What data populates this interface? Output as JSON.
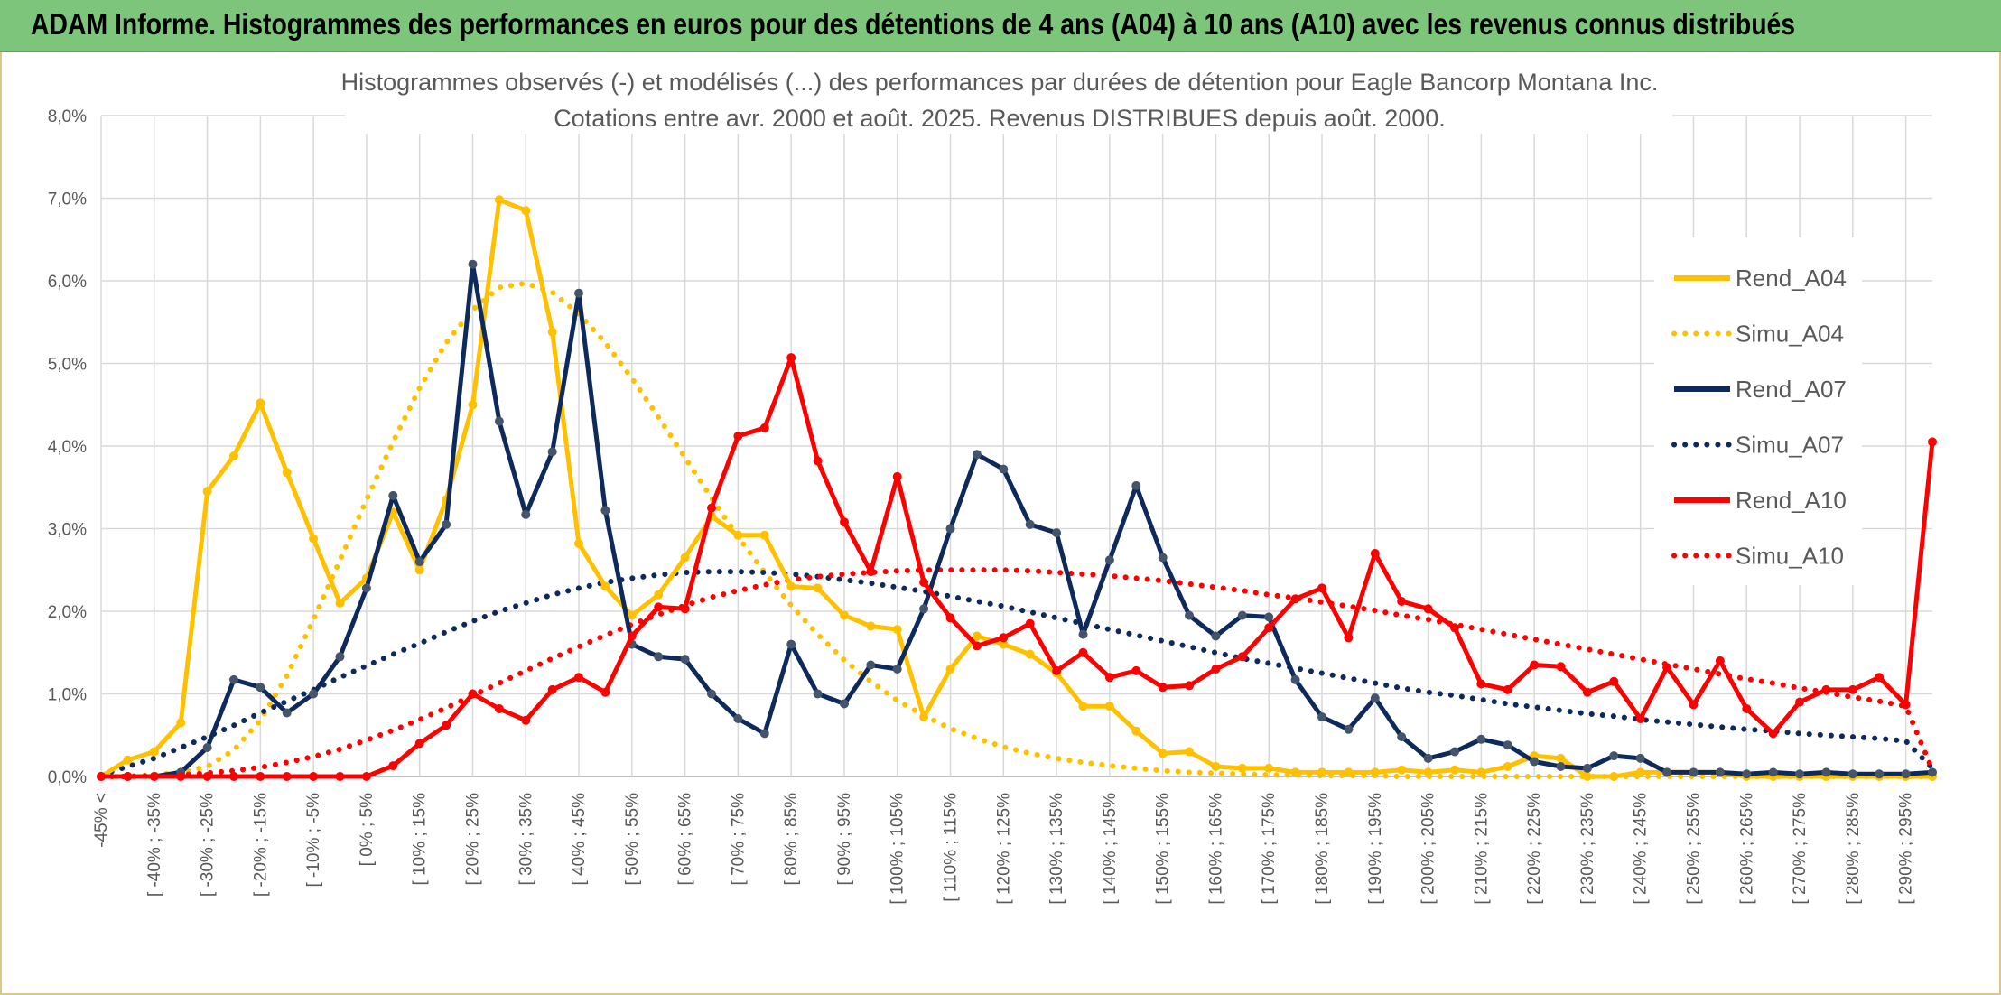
{
  "banner": {
    "text": "ADAM Informe. Histogrammes des performances en euros pour des détentions de 4 ans (A04) à 10 ans (A10) avec les revenus connus distribués",
    "color": "#7cc57b"
  },
  "chart_data": {
    "type": "line",
    "title_line1": "Histogrammes observés (-) et modélisés (...) des performances par durées de détention pour Eagle Bancorp Montana Inc.",
    "title_line2": "Cotations entre avr. 2000 et août. 2025. Revenus DISTRIBUES depuis août. 2000.",
    "ylim": [
      0,
      8
    ],
    "yticks": [
      "0,0%",
      "1,0%",
      "2,0%",
      "3,0%",
      "4,0%",
      "5,0%",
      "6,0%",
      "7,0%",
      "8,0%"
    ],
    "grid": true,
    "legend_position": "right",
    "x_labels": [
      "-45% <",
      "[ -40% ; -35%",
      "[ -30% ; -25%",
      "[ -20% ; -15%",
      "[ -10% ; -5%",
      "[ 0% ; 5%",
      "[ 10% ; 15%",
      "[ 20% ; 25%",
      "[ 30% ; 35%",
      "[ 40% ; 45%",
      "[ 50% ; 55%",
      "[ 60% ; 65%",
      "[ 70% ; 75%",
      "[ 80% ; 85%",
      "[ 90% ; 95%",
      "[ 100% ; 105%",
      "[ 110% ; 115%",
      "[ 120% ; 125%",
      "[ 130% ; 135%",
      "[ 140% ; 145%",
      "[ 150% ; 155%",
      "[ 160% ; 165%",
      "[ 170% ; 175%",
      "[ 180% ; 185%",
      "[ 190% ; 195%",
      "[ 200% ; 205%",
      "[ 210% ; 215%",
      "[ 220% ; 225%",
      "[ 230% ; 235%",
      "[ 240% ; 245%",
      "[ 250% ; 255%",
      "[ 260% ; 265%",
      "[ 270% ; 275%",
      "[ 280% ; 285%",
      "[ 290% ; 295%"
    ],
    "n_points": 70,
    "series": [
      {
        "name": "Rend_A04",
        "color": "#ffc000",
        "style": "solid",
        "values": [
          0.0,
          0.2,
          0.3,
          0.65,
          3.45,
          3.88,
          4.52,
          3.68,
          2.88,
          2.1,
          2.4,
          3.2,
          2.5,
          3.35,
          4.5,
          6.98,
          6.85,
          5.38,
          2.82,
          2.3,
          1.95,
          2.2,
          2.65,
          3.15,
          2.92,
          2.92,
          2.3,
          2.28,
          1.95,
          1.82,
          1.78,
          0.72,
          1.3,
          1.7,
          1.6,
          1.48,
          1.25,
          0.85,
          0.85,
          0.55,
          0.28,
          0.3,
          0.12,
          0.1,
          0.1,
          0.05,
          0.05,
          0.05,
          0.05,
          0.08,
          0.05,
          0.08,
          0.05,
          0.12,
          0.25,
          0.22,
          0.0,
          0.0,
          0.05,
          0.05,
          0.05,
          0.05,
          0.0,
          0.0,
          0.0,
          0.0,
          0.0,
          0.0,
          0.0,
          0.0
        ]
      },
      {
        "name": "Simu_A04",
        "color": "#ffc000",
        "style": "dotted",
        "values": [
          0.0,
          0.0,
          0.02,
          0.05,
          0.12,
          0.32,
          0.68,
          1.22,
          1.9,
          2.62,
          3.35,
          4.05,
          4.7,
          5.25,
          5.65,
          5.92,
          5.97,
          5.86,
          5.6,
          5.25,
          4.82,
          4.35,
          3.86,
          3.37,
          2.9,
          2.47,
          2.07,
          1.72,
          1.41,
          1.15,
          0.92,
          0.74,
          0.58,
          0.46,
          0.36,
          0.28,
          0.22,
          0.17,
          0.13,
          0.1,
          0.07,
          0.05,
          0.04,
          0.03,
          0.02,
          0.02,
          0.01,
          0.01,
          0.01,
          0.0,
          0.0,
          0.0,
          0.0,
          0.0,
          0.0,
          0.0,
          0.0,
          0.0,
          0.0,
          0.0,
          0.0,
          0.0,
          0.0,
          0.0,
          0.0,
          0.0,
          0.0,
          0.0,
          0.0,
          0.0
        ]
      },
      {
        "name": "Rend_A07",
        "color": "#0e2a5c",
        "style": "solid",
        "values": [
          0.0,
          0.0,
          0.0,
          0.05,
          0.35,
          1.17,
          1.08,
          0.77,
          1.0,
          1.45,
          2.28,
          3.4,
          2.6,
          3.05,
          6.2,
          4.3,
          3.17,
          3.93,
          5.85,
          3.22,
          1.6,
          1.45,
          1.42,
          1.0,
          0.7,
          0.52,
          1.6,
          1.0,
          0.88,
          1.35,
          1.3,
          2.03,
          3.0,
          3.9,
          3.72,
          3.05,
          2.95,
          1.72,
          2.62,
          3.52,
          2.65,
          1.95,
          1.7,
          1.95,
          1.93,
          1.17,
          0.72,
          0.57,
          0.95,
          0.48,
          0.22,
          0.3,
          0.45,
          0.38,
          0.18,
          0.12,
          0.1,
          0.25,
          0.22,
          0.05,
          0.05,
          0.05,
          0.03,
          0.05,
          0.03,
          0.05,
          0.03,
          0.03,
          0.03,
          0.05
        ]
      },
      {
        "name": "Simu_A07",
        "color": "#0e2a5c",
        "style": "dotted",
        "values": [
          0.02,
          0.12,
          0.22,
          0.35,
          0.48,
          0.62,
          0.77,
          0.91,
          1.05,
          1.2,
          1.34,
          1.48,
          1.61,
          1.75,
          1.88,
          2.0,
          2.1,
          2.2,
          2.28,
          2.35,
          2.4,
          2.44,
          2.47,
          2.48,
          2.48,
          2.47,
          2.45,
          2.42,
          2.38,
          2.34,
          2.29,
          2.24,
          2.18,
          2.12,
          2.06,
          1.99,
          1.92,
          1.85,
          1.78,
          1.71,
          1.64,
          1.57,
          1.5,
          1.43,
          1.37,
          1.31,
          1.25,
          1.19,
          1.13,
          1.07,
          1.02,
          0.98,
          0.93,
          0.88,
          0.84,
          0.8,
          0.76,
          0.73,
          0.69,
          0.66,
          0.63,
          0.6,
          0.57,
          0.55,
          0.52,
          0.5,
          0.48,
          0.46,
          0.43,
          0.1
        ]
      },
      {
        "name": "Rend_A10",
        "color": "#ff0000",
        "style": "solid",
        "values": [
          0.0,
          0.0,
          0.0,
          0.0,
          0.0,
          0.0,
          0.0,
          0.0,
          0.0,
          0.0,
          0.0,
          0.13,
          0.4,
          0.62,
          1.0,
          0.82,
          0.68,
          1.05,
          1.2,
          1.02,
          1.7,
          2.05,
          2.03,
          3.25,
          4.12,
          4.22,
          5.07,
          3.82,
          3.08,
          2.48,
          3.63,
          2.35,
          1.92,
          1.58,
          1.68,
          1.85,
          1.28,
          1.5,
          1.2,
          1.28,
          1.08,
          1.1,
          1.3,
          1.45,
          1.8,
          2.15,
          2.28,
          1.68,
          2.7,
          2.12,
          2.03,
          1.8,
          1.12,
          1.05,
          1.35,
          1.33,
          1.02,
          1.15,
          0.7,
          1.32,
          0.87,
          1.4,
          0.82,
          0.52,
          0.9,
          1.05,
          1.05,
          1.2,
          0.87,
          4.05
        ]
      },
      {
        "name": "Simu_A10",
        "color": "#ff0000",
        "style": "dotted",
        "values": [
          0.0,
          0.0,
          0.01,
          0.02,
          0.04,
          0.07,
          0.11,
          0.17,
          0.24,
          0.33,
          0.44,
          0.56,
          0.69,
          0.83,
          0.98,
          1.13,
          1.28,
          1.43,
          1.57,
          1.71,
          1.84,
          1.96,
          2.07,
          2.17,
          2.25,
          2.32,
          2.38,
          2.42,
          2.45,
          2.47,
          2.49,
          2.5,
          2.5,
          2.5,
          2.5,
          2.49,
          2.47,
          2.45,
          2.43,
          2.4,
          2.37,
          2.33,
          2.29,
          2.25,
          2.2,
          2.16,
          2.11,
          2.06,
          2.01,
          1.95,
          1.9,
          1.84,
          1.78,
          1.72,
          1.66,
          1.6,
          1.54,
          1.48,
          1.42,
          1.36,
          1.3,
          1.24,
          1.18,
          1.13,
          1.07,
          1.02,
          0.96,
          0.91,
          0.85,
          0.08
        ]
      }
    ]
  }
}
